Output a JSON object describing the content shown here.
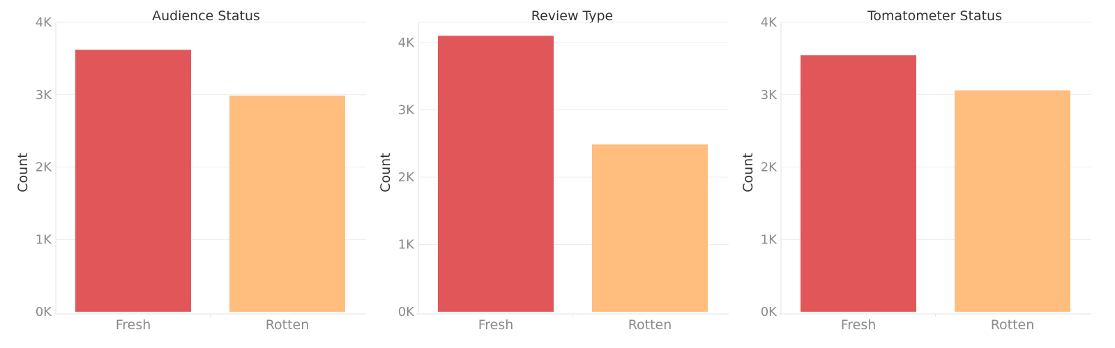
{
  "colors": {
    "fresh": "#e15759",
    "rotten": "#ffbe7d"
  },
  "chart_data": [
    {
      "type": "bar",
      "title": "Audience Status",
      "ylabel": "Count",
      "xlabel": "",
      "categories": [
        "Fresh",
        "Rotten"
      ],
      "values": [
        3620,
        2985
      ],
      "ylim": [
        0,
        4000
      ],
      "yticks": [
        "0K",
        "1K",
        "2K",
        "3K",
        "4K"
      ],
      "grid": true
    },
    {
      "type": "bar",
      "title": "Review Type",
      "ylabel": "Count",
      "xlabel": "",
      "categories": [
        "Fresh",
        "Rotten"
      ],
      "values": [
        4100,
        2485
      ],
      "ylim": [
        0,
        4300
      ],
      "yticks": [
        "0K",
        "1K",
        "2K",
        "3K",
        "4K"
      ],
      "grid": true
    },
    {
      "type": "bar",
      "title": "Tomatometer Status",
      "ylabel": "Count",
      "xlabel": "",
      "categories": [
        "Fresh",
        "Rotten"
      ],
      "values": [
        3545,
        3060
      ],
      "ylim": [
        0,
        4000
      ],
      "yticks": [
        "0K",
        "1K",
        "2K",
        "3K",
        "4K"
      ],
      "grid": true
    }
  ]
}
